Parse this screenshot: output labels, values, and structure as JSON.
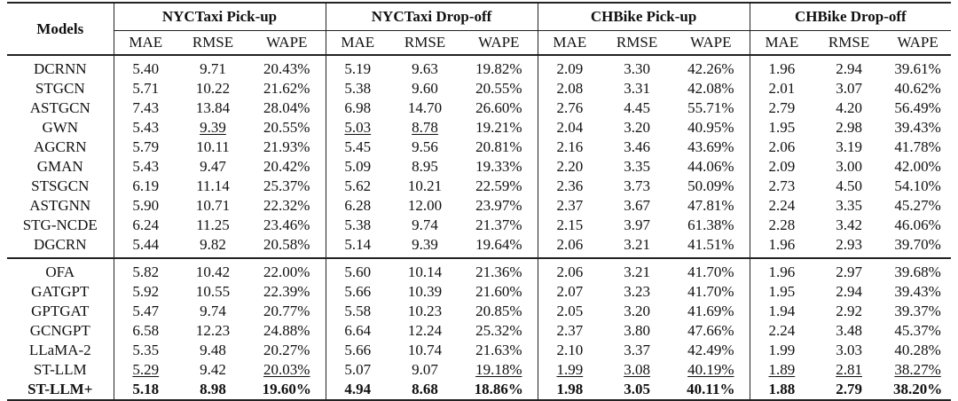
{
  "header": {
    "models_label": "Models",
    "groups": [
      "NYCTaxi Pick-up",
      "NYCTaxi Drop-off",
      "CHBike Pick-up",
      "CHBike Drop-off"
    ],
    "metrics": [
      "MAE",
      "RMSE",
      "WAPE"
    ]
  },
  "baseline_rows": [
    {
      "model": "DCRNN",
      "values": [
        "5.40",
        "9.71",
        "20.43%",
        "5.19",
        "9.63",
        "19.82%",
        "2.09",
        "3.30",
        "42.26%",
        "1.96",
        "2.94",
        "39.61%"
      ]
    },
    {
      "model": "STGCN",
      "values": [
        "5.71",
        "10.22",
        "21.62%",
        "5.38",
        "9.60",
        "20.55%",
        "2.08",
        "3.31",
        "42.08%",
        "2.01",
        "3.07",
        "40.62%"
      ]
    },
    {
      "model": "ASTGCN",
      "values": [
        "7.43",
        "13.84",
        "28.04%",
        "6.98",
        "14.70",
        "26.60%",
        "2.76",
        "4.45",
        "55.71%",
        "2.79",
        "4.20",
        "56.49%"
      ]
    },
    {
      "model": "GWN",
      "values": [
        "5.43",
        "9.39",
        "20.55%",
        "5.03",
        "8.78",
        "19.21%",
        "2.04",
        "3.20",
        "40.95%",
        "1.95",
        "2.98",
        "39.43%"
      ],
      "underline": [
        1,
        3,
        4
      ]
    },
    {
      "model": "AGCRN",
      "values": [
        "5.79",
        "10.11",
        "21.93%",
        "5.45",
        "9.56",
        "20.81%",
        "2.16",
        "3.46",
        "43.69%",
        "2.06",
        "3.19",
        "41.78%"
      ]
    },
    {
      "model": "GMAN",
      "values": [
        "5.43",
        "9.47",
        "20.42%",
        "5.09",
        "8.95",
        "19.33%",
        "2.20",
        "3.35",
        "44.06%",
        "2.09",
        "3.00",
        "42.00%"
      ]
    },
    {
      "model": "STSGCN",
      "values": [
        "6.19",
        "11.14",
        "25.37%",
        "5.62",
        "10.21",
        "22.59%",
        "2.36",
        "3.73",
        "50.09%",
        "2.73",
        "4.50",
        "54.10%"
      ]
    },
    {
      "model": "ASTGNN",
      "values": [
        "5.90",
        "10.71",
        "22.32%",
        "6.28",
        "12.00",
        "23.97%",
        "2.37",
        "3.67",
        "47.81%",
        "2.24",
        "3.35",
        "45.27%"
      ]
    },
    {
      "model": "STG-NCDE",
      "values": [
        "6.24",
        "11.25",
        "23.46%",
        "5.38",
        "9.74",
        "21.37%",
        "2.15",
        "3.97",
        "61.38%",
        "2.28",
        "3.42",
        "46.06%"
      ]
    },
    {
      "model": "DGCRN",
      "values": [
        "5.44",
        "9.82",
        "20.58%",
        "5.14",
        "9.39",
        "19.64%",
        "2.06",
        "3.21",
        "41.51%",
        "1.96",
        "2.93",
        "39.70%"
      ]
    }
  ],
  "llm_rows": [
    {
      "model": "OFA",
      "values": [
        "5.82",
        "10.42",
        "22.00%",
        "5.60",
        "10.14",
        "21.36%",
        "2.06",
        "3.21",
        "41.70%",
        "1.96",
        "2.97",
        "39.68%"
      ]
    },
    {
      "model": "GATGPT",
      "values": [
        "5.92",
        "10.55",
        "22.39%",
        "5.66",
        "10.39",
        "21.60%",
        "2.07",
        "3.23",
        "41.70%",
        "1.95",
        "2.94",
        "39.43%"
      ]
    },
    {
      "model": "GPTGAT",
      "values": [
        "5.47",
        "9.74",
        "20.77%",
        "5.58",
        "10.23",
        "20.85%",
        "2.05",
        "3.20",
        "41.69%",
        "1.94",
        "2.92",
        "39.37%"
      ]
    },
    {
      "model": "GCNGPT",
      "values": [
        "6.58",
        "12.23",
        "24.88%",
        "6.64",
        "12.24",
        "25.32%",
        "2.37",
        "3.80",
        "47.66%",
        "2.24",
        "3.48",
        "45.37%"
      ]
    },
    {
      "model": "LLaMA-2",
      "values": [
        "5.35",
        "9.48",
        "20.27%",
        "5.66",
        "10.74",
        "21.63%",
        "2.10",
        "3.37",
        "42.49%",
        "1.99",
        "3.03",
        "40.28%"
      ]
    },
    {
      "model": "ST-LLM",
      "values": [
        "5.29",
        "9.42",
        "20.03%",
        "5.07",
        "9.07",
        "19.18%",
        "1.99",
        "3.08",
        "40.19%",
        "1.89",
        "2.81",
        "38.27%"
      ],
      "underline": [
        0,
        2,
        5,
        6,
        7,
        8,
        9,
        10,
        11
      ]
    },
    {
      "model": "ST-LLM+",
      "values": [
        "5.18",
        "8.98",
        "19.60%",
        "4.94",
        "8.68",
        "18.86%",
        "1.98",
        "3.05",
        "40.11%",
        "1.88",
        "2.79",
        "38.20%"
      ],
      "bold": true
    }
  ]
}
